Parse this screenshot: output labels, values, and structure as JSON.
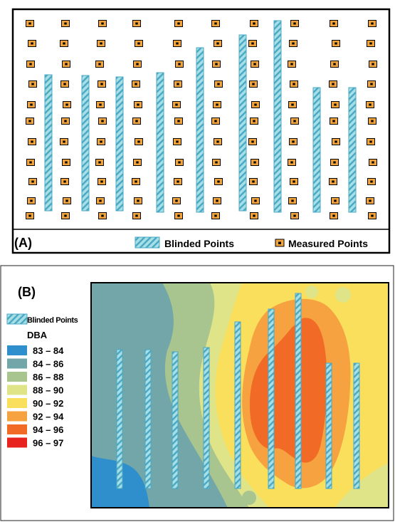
{
  "panel_a": {
    "label": "(A)",
    "legend": {
      "blinded": "Blinded Points",
      "measured": "Measured Points"
    }
  },
  "panel_b": {
    "label": "(B)",
    "blinded_legend": "Blinded Points",
    "legend_title": "DBA",
    "classes": [
      {
        "range": "83 – 84",
        "color": "#2f8fcc"
      },
      {
        "range": "84 – 86",
        "color": "#72a6a8"
      },
      {
        "range": "86 – 88",
        "color": "#a8c48f"
      },
      {
        "range": "88 – 90",
        "color": "#dfe489"
      },
      {
        "range": "90 – 92",
        "color": "#f9df5b"
      },
      {
        "range": "92 – 94",
        "color": "#f7a241"
      },
      {
        "range": "94 – 96",
        "color": "#f26b26"
      },
      {
        "range": "96 – 97",
        "color": "#e8231f"
      }
    ]
  },
  "colors": {
    "measured_fill": "#f2a33a",
    "blinded_fill": "#a6e0e6",
    "blinded_stripe": "#4aa8c4"
  }
}
